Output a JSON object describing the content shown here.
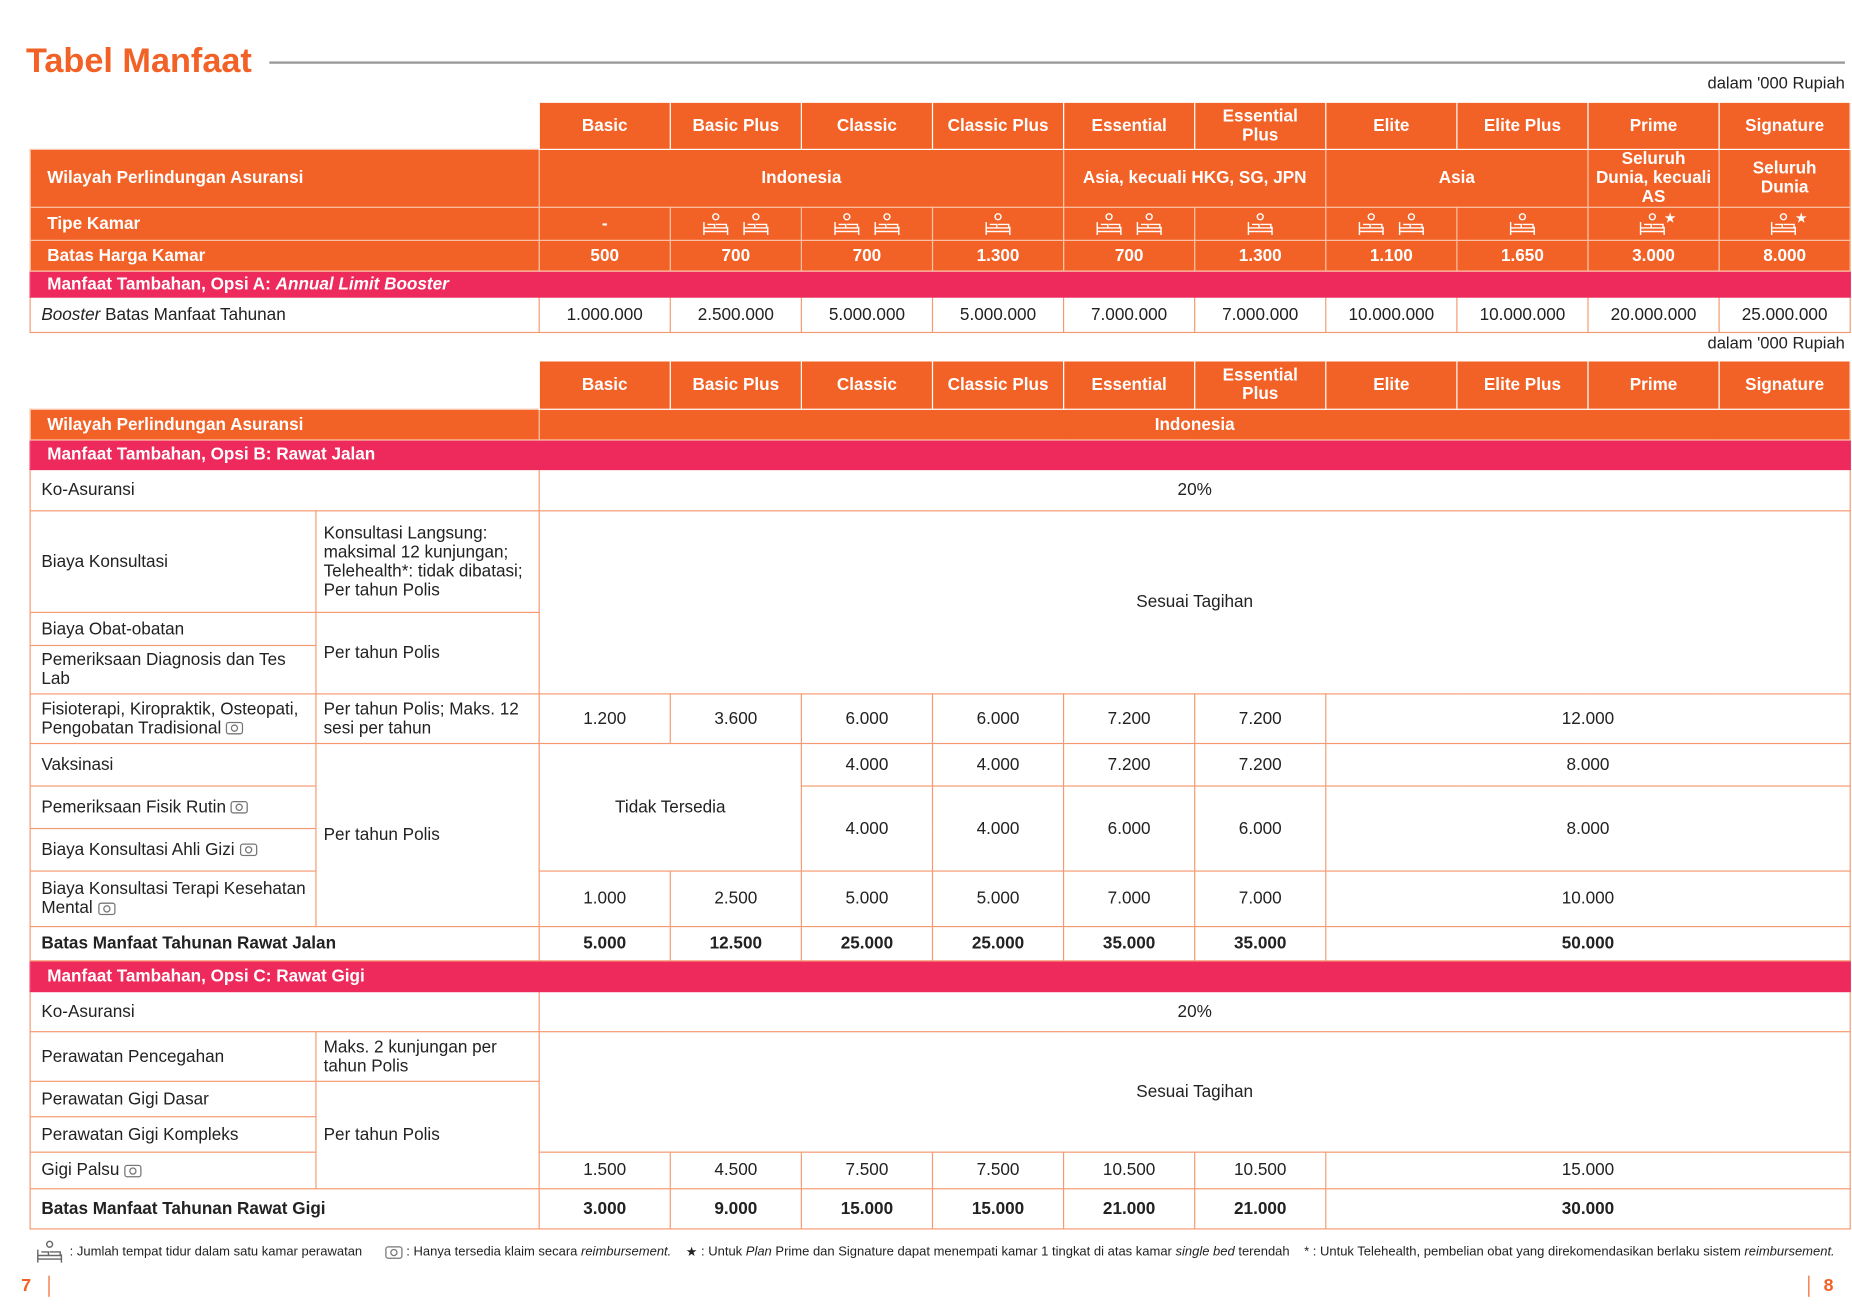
{
  "title": "Tabel Manfaat",
  "unit_note": "dalam '000 Rupiah",
  "plans": [
    "Basic",
    "Basic Plus",
    "Classic",
    "Classic Plus",
    "Essential",
    "Essential Plus",
    "Elite",
    "Elite Plus",
    "Prime",
    "Signature"
  ],
  "table1": {
    "region_label": "Wilayah Perlindungan Asuransi",
    "regions": [
      "Indonesia",
      "Asia, kecuali HKG, SG, JPN",
      "Asia",
      "Seluruh Dunia, kecuali AS",
      "Seluruh Dunia"
    ],
    "room_type_label": "Tipe Kamar",
    "room_type_basic": "-",
    "room_beds": [
      0,
      2,
      2,
      1,
      2,
      1,
      2,
      1,
      1,
      1
    ],
    "room_star": [
      false,
      false,
      false,
      false,
      false,
      false,
      false,
      false,
      true,
      true
    ],
    "room_price_label": "Batas Harga Kamar",
    "room_prices": [
      "500",
      "700",
      "700",
      "1.300",
      "700",
      "1.300",
      "1.100",
      "1.650",
      "3.000",
      "8.000"
    ],
    "option_a_label": "Manfaat Tambahan, Opsi A: ",
    "option_a_italic": "Annual Limit Booster",
    "booster_label_italic": "Booster",
    "booster_label": " Batas Manfaat Tahunan",
    "booster_values": [
      "1.000.000",
      "2.500.000",
      "5.000.000",
      "5.000.000",
      "7.000.000",
      "7.000.000",
      "10.000.000",
      "10.000.000",
      "20.000.000",
      "25.000.000"
    ]
  },
  "table2": {
    "region_label": "Wilayah Perlindungan Asuransi",
    "region": "Indonesia",
    "option_b_label": "Manfaat Tambahan, Opsi B: Rawat Jalan",
    "coins_label": "Ko-Asuransi",
    "coins_value": "20%",
    "consult_label": "Biaya Konsultasi",
    "consult_note": "Konsultasi Langsung: maksimal 12 kunjungan; Telehealth*: tidak dibatasi; Per tahun Polis",
    "as_billed": "Sesuai Tagihan",
    "medicine_label": "Biaya Obat-obatan",
    "per_year": "Per tahun Polis",
    "diag_label": "Pemeriksaan Diagnosis dan Tes Lab",
    "physio_label": "Fisioterapi, Kiropraktik, Osteopati, Pengobatan Tradisional",
    "physio_note": "Per tahun Polis; Maks. 12 sesi per tahun",
    "physio_values": [
      "1.200",
      "3.600",
      "6.000",
      "6.000",
      "7.200",
      "7.200",
      "12.000"
    ],
    "vaccine_label": "Vaksinasi",
    "not_available": "Tidak Tersedia",
    "vaccine_values": [
      "4.000",
      "4.000",
      "7.200",
      "7.200",
      "8.000"
    ],
    "checkup_label": "Pemeriksaan Fisik Rutin",
    "nutrition_label": "Biaya Konsultasi Ahli Gizi",
    "checkup_nutrition_values": [
      "4.000",
      "4.000",
      "6.000",
      "6.000",
      "8.000"
    ],
    "mental_label": "Biaya Konsultasi Terapi Kesehatan Mental",
    "mental_values": [
      "1.000",
      "2.500",
      "5.000",
      "5.000",
      "7.000",
      "7.000",
      "10.000"
    ],
    "outpatient_limit_label": "Batas Manfaat Tahunan Rawat Jalan",
    "outpatient_limit_values": [
      "5.000",
      "12.500",
      "25.000",
      "25.000",
      "35.000",
      "35.000",
      "50.000"
    ],
    "option_c_label": "Manfaat Tambahan, Opsi C: Rawat Gigi",
    "dental_coins_label": "Ko-Asuransi",
    "dental_coins_value": "20%",
    "prevent_label": "Perawatan Pencegahan",
    "prevent_note": "Maks. 2 kunjungan per tahun Polis",
    "basic_dental_label": "Perawatan Gigi Dasar",
    "complex_dental_label": "Perawatan Gigi Kompleks",
    "dentures_label": "Gigi Palsu",
    "dentures_values": [
      "1.500",
      "4.500",
      "7.500",
      "7.500",
      "10.500",
      "10.500",
      "15.000"
    ],
    "dental_limit_label": "Batas Manfaat Tahunan Rawat Gigi",
    "dental_limit_values": [
      "3.000",
      "9.000",
      "15.000",
      "15.000",
      "21.000",
      "21.000",
      "30.000"
    ]
  },
  "footer": {
    "bed_note": ": Jumlah tempat tidur dalam satu kamar perawatan",
    "reimb_note": ": Hanya tersedia klaim secara ",
    "reimb_italic": "reimbursement.",
    "star_note_1": ": Untuk ",
    "star_note_italic1": "Plan",
    "star_note_2": " Prime dan Signature dapat menempati kamar 1 tingkat di atas kamar ",
    "star_note_italic2": "single bed",
    "star_note_3": " terendah",
    "asterisk_note": ": Untuk Telehealth, pembelian obat yang direkomendasikan berlaku sistem ",
    "asterisk_italic": "reimbursement."
  },
  "page_left": "7",
  "page_right": "8",
  "colors": {
    "orange": "#f26126",
    "pink": "#ee2a5c",
    "border": "#f59a70"
  }
}
